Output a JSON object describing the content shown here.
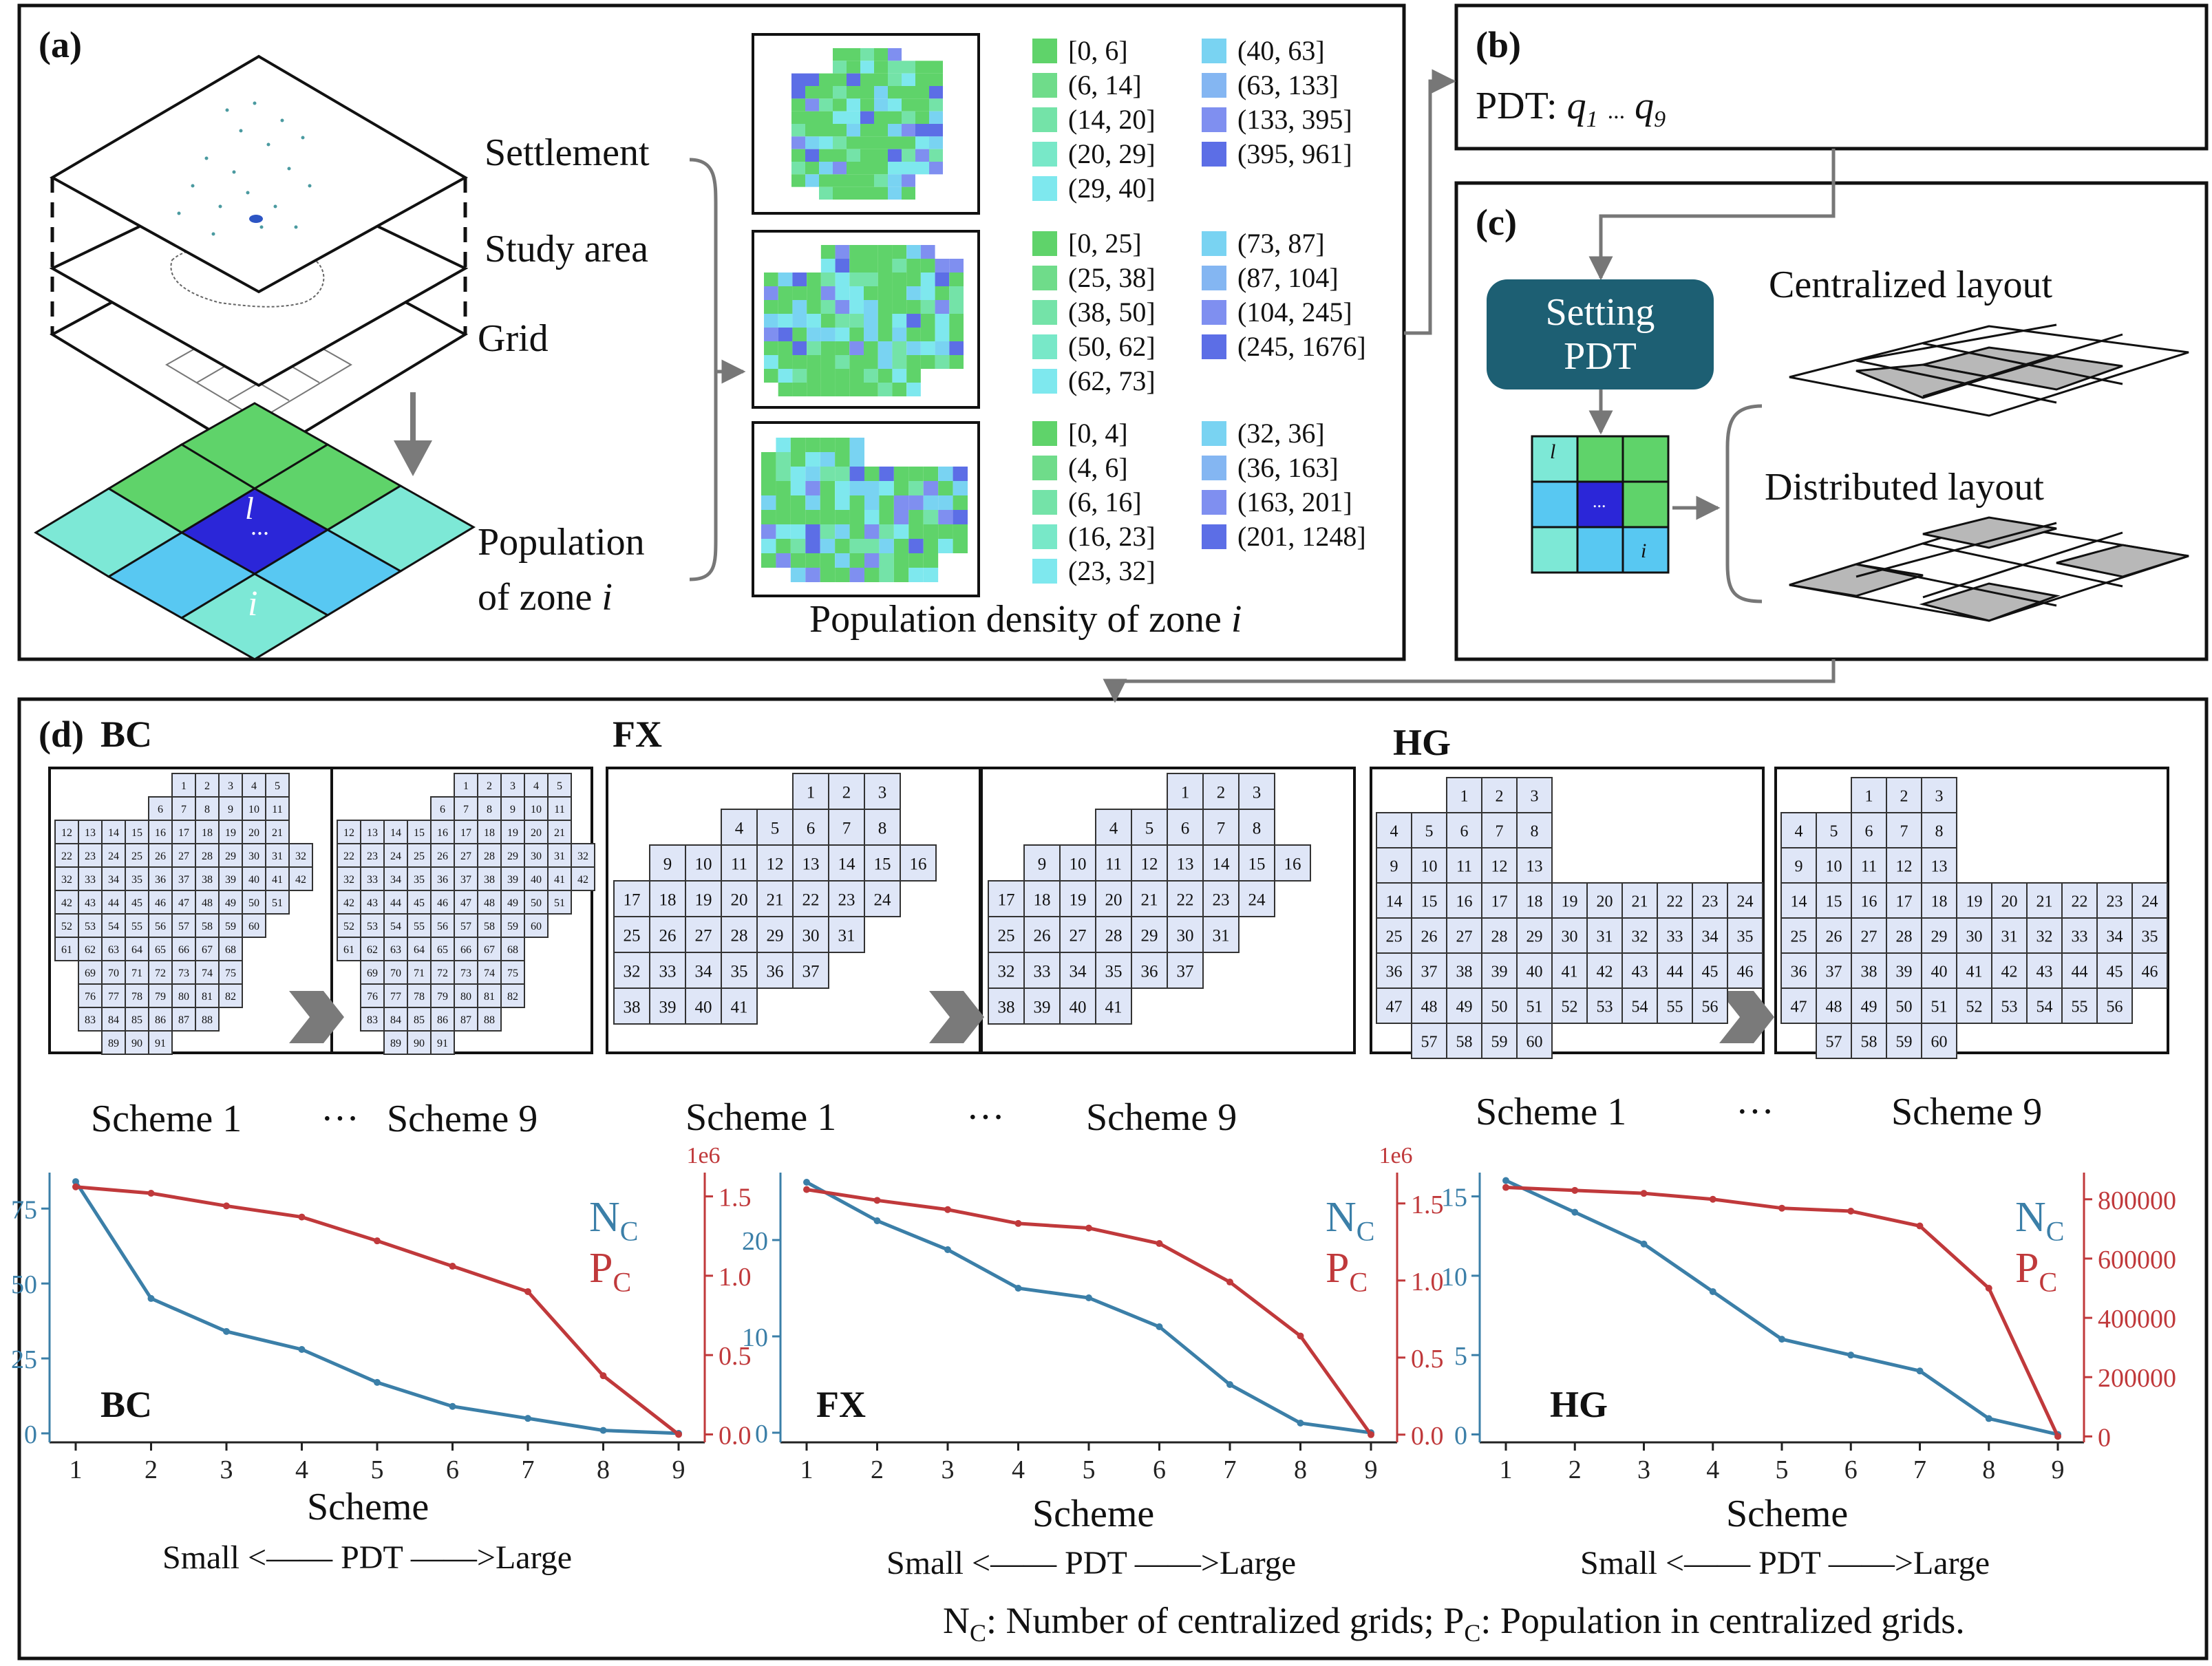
{
  "panel_a": {
    "label": "(a)",
    "layers": [
      "Settlement",
      "Study area",
      "Grid"
    ],
    "pop_label_line1": "Population",
    "pop_label_line2": "of zone ",
    "pop_label_var": "i",
    "cell_center_label": "l",
    "cell_dots": "...",
    "cell_bottom_label": "i",
    "density_caption": "Population density of zone ",
    "density_caption_var": "i",
    "legends": [
      {
        "col1": [
          "[0, 6]",
          "(6, 14]",
          "(14, 20]",
          "(20, 29]",
          "(29, 40]"
        ],
        "col2": [
          "(40, 63]",
          "(63, 133]",
          "(133, 395]",
          "(395, 961]"
        ]
      },
      {
        "col1": [
          "[0, 25]",
          "(25, 38]",
          "(38, 50]",
          "(50, 62]",
          "(62, 73]"
        ],
        "col2": [
          "(73, 87]",
          "(87, 104]",
          "(104, 245]",
          "(245, 1676]"
        ]
      },
      {
        "col1": [
          "[0, 4]",
          "(4, 6]",
          "(6, 16]",
          "(16, 23]",
          "(23, 32]"
        ],
        "col2": [
          "(32, 36]",
          "(36, 163]",
          "(163, 201]",
          "(201, 1248]"
        ]
      }
    ],
    "legend_colors_col1": [
      "#5fd36a",
      "#6fdc8a",
      "#74e3a8",
      "#78e8c8",
      "#7ee8ee"
    ],
    "legend_colors_col2": [
      "#79d3f2",
      "#84b6f2",
      "#7f8ff0",
      "#5c6ee6"
    ]
  },
  "panel_b": {
    "label": "(b)",
    "text_prefix": "PDT: ",
    "q1": "q",
    "q1_sub": "1",
    "dots": "...",
    "q9": "q",
    "q9_sub": "9"
  },
  "panel_c": {
    "label": "(c)",
    "button_line1": "Setting",
    "button_line2": "PDT",
    "centralized": "Centralized layout",
    "distributed": "Distributed layout",
    "grid_labels": [
      "l",
      "...",
      "i"
    ]
  },
  "panel_d": {
    "label": "(d)",
    "regions": [
      "BC",
      "FX",
      "HG"
    ],
    "scheme_first": "Scheme 1",
    "scheme_dots": "···",
    "scheme_last": "Scheme 9",
    "xlabel": "Scheme",
    "pdt_axis": "Small <—— PDT ——>Large",
    "nc_label": "N",
    "nc_sub": "C",
    "pc_label": "P",
    "pc_sub": "C",
    "footnote": {
      "n": "N",
      "n_sub": "C",
      "n_text": ": Number of centralized grids; ",
      "p": "P",
      "p_sub": "C",
      "p_text": ": Population in centralized grids."
    }
  },
  "colors": {
    "nc": "#3b7fa8",
    "pc": "#c0393b",
    "cell": "#dfe6f7"
  },
  "chart_data": [
    {
      "type": "line",
      "title": "BC",
      "x": [
        1,
        2,
        3,
        4,
        5,
        6,
        7,
        8,
        9
      ],
      "xlabel": "Scheme",
      "series": [
        {
          "name": "NC",
          "axis": "left",
          "values": [
            84,
            45,
            34,
            28,
            17,
            9,
            5,
            1,
            0
          ]
        },
        {
          "name": "PC",
          "axis": "right",
          "values": [
            1560000,
            1520000,
            1440000,
            1370000,
            1220000,
            1060000,
            900000,
            370000,
            0
          ]
        }
      ],
      "ylim_left": [
        -3,
        87
      ],
      "yticks_left": [
        "0",
        "25",
        "50",
        "75"
      ],
      "ylim_right": [
        -50000,
        1650000
      ],
      "yticks_right": [
        "0.0",
        "0.5",
        "1.0",
        "1.5"
      ],
      "right_scale_label": "1e6"
    },
    {
      "type": "line",
      "title": "FX",
      "x": [
        1,
        2,
        3,
        4,
        5,
        6,
        7,
        8,
        9
      ],
      "xlabel": "Scheme",
      "series": [
        {
          "name": "NC",
          "axis": "left",
          "values": [
            26,
            22,
            19,
            15,
            14,
            11,
            5,
            1,
            0
          ]
        },
        {
          "name": "PC",
          "axis": "right",
          "values": [
            1590000,
            1520000,
            1460000,
            1370000,
            1340000,
            1240000,
            990000,
            640000,
            0
          ]
        }
      ],
      "ylim_left": [
        -1,
        27
      ],
      "yticks_left": [
        "0",
        "10",
        "20"
      ],
      "ylim_right": [
        -50000,
        1700000
      ],
      "yticks_right": [
        "0.0",
        "0.5",
        "1.0",
        "1.5"
      ],
      "right_scale_label": "1e6"
    },
    {
      "type": "line",
      "title": "HG",
      "x": [
        1,
        2,
        3,
        4,
        5,
        6,
        7,
        8,
        9
      ],
      "xlabel": "Scheme",
      "series": [
        {
          "name": "NC",
          "axis": "left",
          "values": [
            16,
            14,
            12,
            9,
            6,
            5,
            4,
            1,
            0
          ]
        },
        {
          "name": "PC",
          "axis": "right",
          "values": [
            840000,
            830000,
            820000,
            800000,
            770000,
            760000,
            710000,
            500000,
            0
          ]
        }
      ],
      "ylim_left": [
        -0.5,
        16.5
      ],
      "yticks_left": [
        "0",
        "5",
        "10",
        "15"
      ],
      "ylim_right": [
        -20000,
        890000
      ],
      "yticks_right": [
        "0",
        "200000",
        "400000",
        "600000",
        "800000"
      ],
      "right_scale_label": ""
    }
  ]
}
